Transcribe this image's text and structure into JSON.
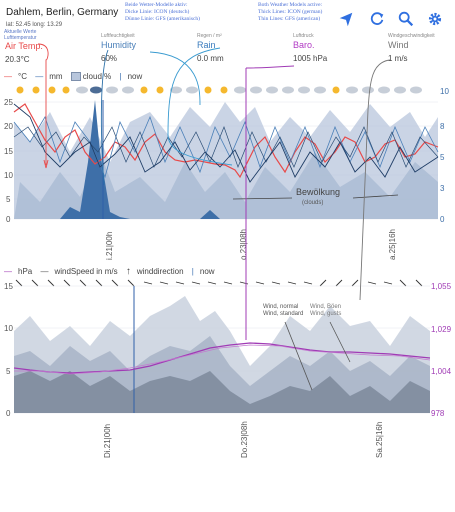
{
  "header": {
    "location": "Dahlem, Berlin, Germany",
    "coords": "lat: 52.45  long: 13.29",
    "note_left": [
      "Aktuelle Werte",
      "Lufttemperatur"
    ],
    "note_mid": [
      "Beide Wetter-Modelle aktiv:",
      "Dicke Linie: ICON (deutsch)",
      "Dünne Linie: GFS (amerikanisch)"
    ],
    "note_mid2": [
      "Both Weather Models active:",
      "Thick Lines: ICON (german)",
      "Thin Lines: GFS (american)"
    ]
  },
  "toolbar": {
    "location_icon": "navigation-arrow-icon",
    "refresh_icon": "refresh-icon",
    "search_icon": "search-icon",
    "settings_icon": "gear-icon"
  },
  "current": [
    {
      "id": "temp",
      "small": "",
      "label": "Air Temp.",
      "value": "20.3°C",
      "color": "#e84a4a"
    },
    {
      "id": "humidity",
      "small": "Luftfeuchtigkeit",
      "label": "Humidity",
      "value": "60%",
      "color": "#4a7fb8"
    },
    {
      "id": "rain",
      "small": "Regen / m²",
      "label": "Rain",
      "value": "0.0 mm",
      "color": "#3a7bbd"
    },
    {
      "id": "baro",
      "small": "Luftdruck",
      "label": "Baro.",
      "value": "1005 hPa",
      "color": "#b13bc4"
    },
    {
      "id": "wind",
      "small": "Windgeschwindigkeit",
      "label": "Wind",
      "value": "1 m/s",
      "color": "#777777"
    }
  ],
  "chart1": {
    "legend": [
      "°C",
      "mm",
      "cloud %",
      "now"
    ],
    "y_left": [
      "25",
      "20",
      "15",
      "10",
      "5",
      "0"
    ],
    "y_right": [
      "10",
      "8",
      "5",
      "3",
      "0"
    ],
    "x_ticks": [
      "i.21|00h",
      "o.23|08h",
      "a.25|16h"
    ],
    "annotation": [
      "Bewölkung",
      "(clouds)"
    ],
    "colors": {
      "temp": "#e84a4a",
      "rain": "#3a6fb0",
      "cloud": "#b8c6dc"
    }
  },
  "chart2": {
    "legend": [
      "hPa",
      "windSpeed in m/s",
      "winddirection",
      "now"
    ],
    "y_left": [
      "15",
      "10",
      "5",
      "0"
    ],
    "y_right": [
      "1,055",
      "1,029",
      "1,004",
      "978"
    ],
    "x_ticks": [
      "Di.21|00h",
      "Do.23|08h",
      "Sa.25|16h"
    ],
    "annotation": [
      "Wind, normal",
      "Wind, standard",
      "Wind, Böen",
      "Wind, gusts"
    ],
    "colors": {
      "baro": "#a03bb5",
      "wind": "#9aa5b5"
    }
  }
}
